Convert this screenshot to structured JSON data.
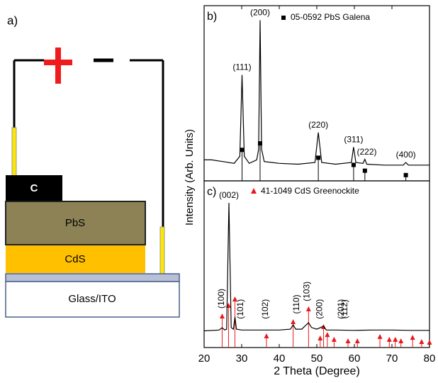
{
  "schematic": {
    "panel_label": "a)",
    "layers": [
      "C",
      "PbS",
      "CdS",
      "Glass/ITO"
    ]
  },
  "y_label": "Intensity (Arb. Units)",
  "chart_data": [
    {
      "type": "line",
      "panel_label": "b)",
      "color": "#000000",
      "x": [
        20,
        22,
        25,
        28,
        29.5,
        30.1,
        30.7,
        32,
        34,
        34.5,
        34.9,
        35.3,
        36,
        40,
        45,
        49.5,
        50.4,
        51.3,
        55,
        59.2,
        59.8,
        60.4,
        62.3,
        62.8,
        63.3,
        68,
        73,
        73.7,
        74.4,
        78,
        80
      ],
      "values": [
        12,
        12,
        11,
        10,
        14,
        60.5,
        14,
        10,
        12,
        18,
        91.7,
        18,
        11,
        10,
        9.5,
        10.5,
        27.6,
        10.5,
        9.5,
        10.5,
        19.3,
        10.5,
        10,
        12.3,
        9.5,
        9,
        9,
        10.5,
        9,
        9,
        9
      ],
      "references": {
        "name": "05-0592 PbS Galena",
        "color": "#000000",
        "marker": "square",
        "x": [
          30.1,
          34.9,
          50.4,
          59.8,
          62.8,
          73.7
        ],
        "values": [
          17.7,
          21.4,
          13.2,
          9.1,
          5.8,
          3.3
        ]
      },
      "peak_labels": [
        {
          "label": "(111)",
          "x": 30.1
        },
        {
          "label": "(200)",
          "x": 34.9
        },
        {
          "label": "(220)",
          "x": 50.4
        },
        {
          "label": "(311)",
          "x": 59.8
        },
        {
          "label": "(222)",
          "x": 63.3
        },
        {
          "label": "(400)",
          "x": 73.7
        }
      ],
      "xlim": [
        20,
        80
      ],
      "ylim": [
        0,
        100
      ]
    },
    {
      "type": "line",
      "panel_label": "c)",
      "color": "#000000",
      "x": [
        20,
        24,
        24.8,
        25.5,
        26,
        26.6,
        27.2,
        27.8,
        28.2,
        28.6,
        30,
        35,
        40,
        43,
        43.7,
        44.4,
        46,
        47.8,
        48.6,
        50,
        51.8,
        52.5,
        55,
        60,
        65,
        70,
        75,
        80
      ],
      "values": [
        10,
        10.5,
        11.9,
        10.5,
        11,
        86.8,
        12,
        11,
        18.3,
        11,
        10.5,
        10.5,
        10.5,
        11,
        13.6,
        11,
        11,
        14.9,
        12,
        11,
        12.8,
        10.5,
        10.5,
        10.3,
        10.5,
        10.5,
        10.3,
        10.3
      ],
      "references": {
        "name": "41-1049 CdS Greenockite",
        "color": "#e8191c",
        "marker": "triangle",
        "x": [
          24.8,
          26.5,
          28.2,
          36.6,
          43.7,
          47.8,
          50.9,
          51.8,
          52.8,
          54.6,
          58.3,
          60.8,
          66.8,
          69.3,
          70.9,
          72.4,
          75.5,
          77.9,
          80
        ],
        "values": [
          18.3,
          24.7,
          28.5,
          6.4,
          14.9,
          22.6,
          5.1,
          11.9,
          7.2,
          4.3,
          3.4,
          3.4,
          6,
          4.3,
          4.3,
          3.4,
          5.5,
          3,
          2.6
        ]
      },
      "peak_labels": [
        {
          "label": "(002)",
          "x": 26.6
        },
        {
          "label": "(100)",
          "x": 24.7
        },
        {
          "label": "(101)",
          "x": 29.8
        },
        {
          "label": "(102)",
          "x": 36.4
        },
        {
          "label": "(110)",
          "x": 44.7
        },
        {
          "label": "(103)",
          "x": 47.4
        },
        {
          "label": "(200)",
          "x": 50.8
        },
        {
          "label": "(112)",
          "x": 57.5
        },
        {
          "label": "(201)",
          "x": 56.6
        }
      ],
      "x_label": "2 Theta (Degree)",
      "xlim": [
        20,
        80
      ],
      "xticks": [
        20,
        30,
        40,
        50,
        60,
        70,
        80
      ],
      "ylim": [
        0,
        100
      ]
    }
  ]
}
